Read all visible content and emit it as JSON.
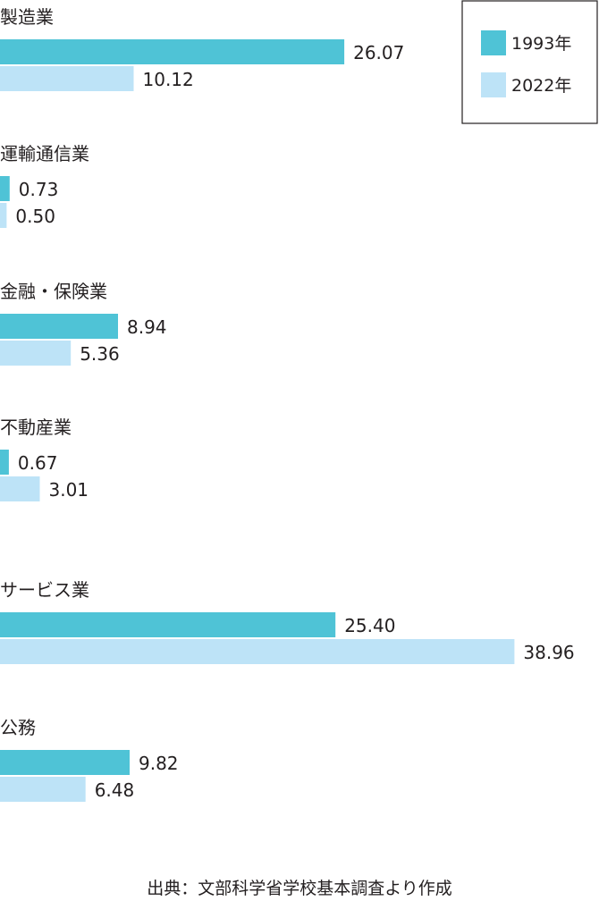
{
  "chart_data": {
    "type": "bar",
    "orientation": "horizontal",
    "categories": [
      "製造業",
      "運輸通信業",
      "金融・保険業",
      "不動産業",
      "サービス業",
      "公務"
    ],
    "series": [
      {
        "name": "1993年",
        "color": "#4fc3d6",
        "values": [
          26.07,
          0.73,
          8.94,
          0.67,
          25.4,
          9.82
        ]
      },
      {
        "name": "2022年",
        "color": "#bde3f7",
        "values": [
          10.12,
          0.5,
          5.36,
          3.01,
          38.96,
          6.48
        ]
      }
    ],
    "value_labels": [
      [
        "26.07",
        "0.73",
        "8.94",
        "0.67",
        "25.40",
        "9.82"
      ],
      [
        "10.12",
        "0.50",
        "5.36",
        "3.01",
        "38.96",
        "6.48"
      ]
    ],
    "legend_position": "top-right",
    "grid": false,
    "source": "出典：文部科学省学校基本調査より作成"
  }
}
